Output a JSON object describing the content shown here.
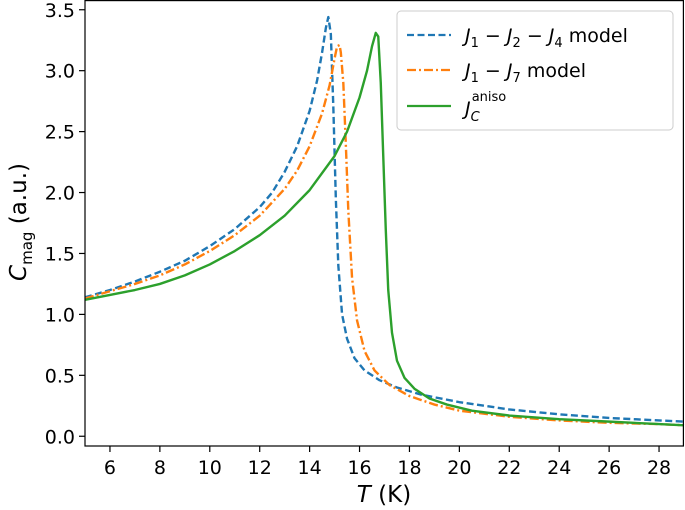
{
  "chart_data": {
    "type": "line",
    "xlabel": "T (K)",
    "ylabel": "C_mag (a.u.)",
    "xlim": [
      5,
      29
    ],
    "ylim": [
      -0.08,
      3.58
    ],
    "xticks": [
      6,
      8,
      10,
      12,
      14,
      16,
      18,
      20,
      22,
      24,
      26,
      28
    ],
    "yticks": [
      0.0,
      0.5,
      1.0,
      1.5,
      2.0,
      2.5,
      3.0,
      3.5
    ],
    "grid": false,
    "legend_position": "top-right",
    "series": [
      {
        "name": "J1 − J2 − J4 model",
        "legend_parts": {
          "s1": "1",
          "s2": "2",
          "s3": "4",
          "suffix": "model"
        },
        "color": "#1f77b4",
        "style": "dashed",
        "x": [
          5,
          6,
          7,
          8,
          9,
          10,
          11,
          12,
          12.5,
          13,
          13.5,
          14,
          14.3,
          14.5,
          14.65,
          14.75,
          14.85,
          14.95,
          15.05,
          15.15,
          15.3,
          15.5,
          15.8,
          16.2,
          16.8,
          17.5,
          18.5,
          20,
          22,
          24,
          26,
          28,
          29
        ],
        "y": [
          1.14,
          1.2,
          1.27,
          1.35,
          1.44,
          1.56,
          1.7,
          1.88,
          2.0,
          2.17,
          2.38,
          2.67,
          2.92,
          3.15,
          3.35,
          3.44,
          3.3,
          2.7,
          1.95,
          1.4,
          1.0,
          0.8,
          0.64,
          0.54,
          0.46,
          0.4,
          0.34,
          0.28,
          0.22,
          0.18,
          0.15,
          0.13,
          0.12
        ]
      },
      {
        "name": "J1 − J7 model",
        "legend_parts": {
          "s1": "1",
          "s2": "7",
          "suffix": "model"
        },
        "color": "#ff7f0e",
        "style": "dashdot",
        "x": [
          5,
          6,
          7,
          8,
          9,
          10,
          11,
          12,
          13,
          13.5,
          14,
          14.5,
          14.8,
          15.0,
          15.1,
          15.2,
          15.25,
          15.35,
          15.45,
          15.55,
          15.7,
          15.9,
          16.2,
          16.6,
          17.2,
          18,
          19,
          20,
          22,
          24,
          26,
          28,
          29
        ],
        "y": [
          1.13,
          1.19,
          1.25,
          1.32,
          1.41,
          1.52,
          1.65,
          1.81,
          2.03,
          2.18,
          2.38,
          2.65,
          2.88,
          3.1,
          3.2,
          3.21,
          3.15,
          2.9,
          2.4,
          1.85,
          1.3,
          0.95,
          0.7,
          0.54,
          0.42,
          0.33,
          0.26,
          0.21,
          0.16,
          0.13,
          0.11,
          0.1,
          0.09
        ]
      },
      {
        "name": "J_C^aniso",
        "legend_parts": {
          "sub": "C",
          "sup": "aniso"
        },
        "color": "#2ca02c",
        "style": "solid",
        "x": [
          5,
          6,
          7,
          8,
          9,
          10,
          11,
          12,
          13,
          14,
          15,
          15.5,
          16,
          16.3,
          16.5,
          16.65,
          16.75,
          16.85,
          16.95,
          17.05,
          17.15,
          17.3,
          17.5,
          17.8,
          18.2,
          18.8,
          19.5,
          20.5,
          22,
          24,
          26,
          28,
          29
        ],
        "y": [
          1.12,
          1.16,
          1.2,
          1.25,
          1.32,
          1.41,
          1.52,
          1.65,
          1.81,
          2.02,
          2.3,
          2.5,
          2.78,
          3.0,
          3.2,
          3.31,
          3.28,
          2.9,
          2.3,
          1.7,
          1.2,
          0.85,
          0.62,
          0.48,
          0.39,
          0.31,
          0.26,
          0.21,
          0.17,
          0.14,
          0.12,
          0.1,
          0.09
        ]
      }
    ]
  }
}
